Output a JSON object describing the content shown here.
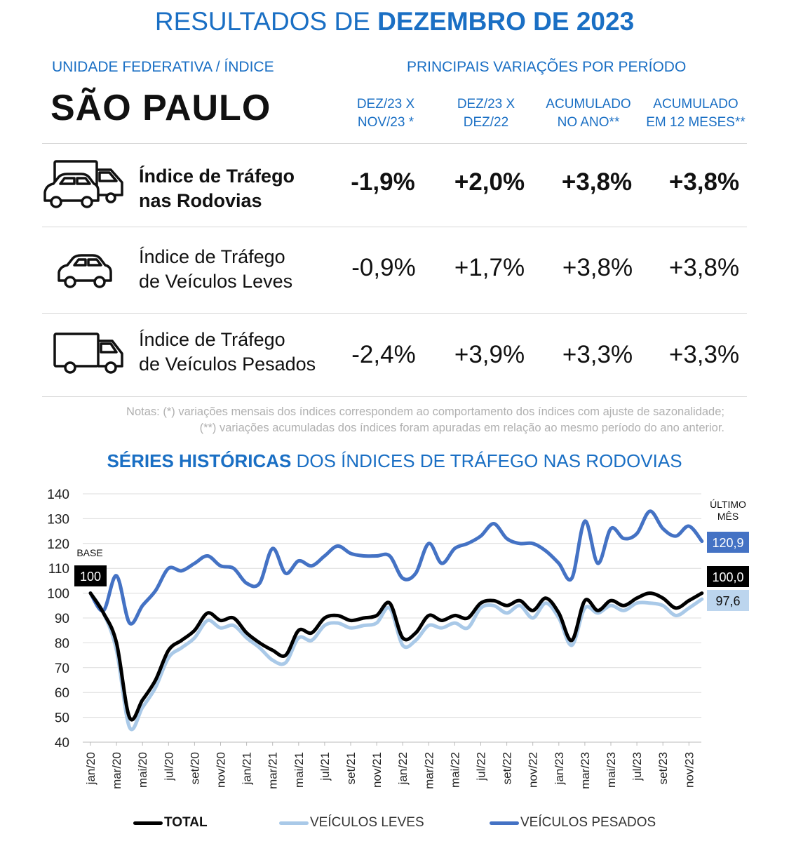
{
  "header": {
    "title_normal": "RESULTADOS DE ",
    "title_bold": "DEZEMBRO DE 2023",
    "left_label": "UNIDADE FEDERATIVA / ÍNDICE",
    "right_label": "PRINCIPAIS VARIAÇÕES POR PERÍODO",
    "state": "SÃO PAULO",
    "columns": [
      {
        "line1": "DEZ/23 X",
        "line2": "NOV/23 *"
      },
      {
        "line1": "DEZ/23 X",
        "line2": "DEZ/22"
      },
      {
        "line1": "ACUMULADO",
        "line2": "NO ANO**"
      },
      {
        "line1": "ACUMULADO",
        "line2": "EM 12 MESES**"
      }
    ]
  },
  "rows": [
    {
      "line1": "Índice de Tráfego",
      "line2": "nas Rodovias",
      "icon": "truck-and-car-icon",
      "values": [
        "-1,9%",
        "+2,0%",
        "+3,8%",
        "+3,8%"
      ]
    },
    {
      "line1": "Índice de Tráfego",
      "line2": "de Veículos Leves",
      "icon": "car-icon",
      "values": [
        "-0,9%",
        "+1,7%",
        "+3,8%",
        "+3,8%"
      ]
    },
    {
      "line1": "Índice de Tráfego",
      "line2": "de Veículos Pesados",
      "icon": "truck-icon",
      "values": [
        "-2,4%",
        "+3,9%",
        "+3,3%",
        "+3,3%"
      ]
    }
  ],
  "notes": {
    "line1": "Notas: (*) variações mensais dos índices correspondem ao comportamento dos índices com ajuste de sazonalidade;",
    "line2": "(**) variações acumuladas dos índices foram apuradas em relação ao mesmo período do ano anterior."
  },
  "chart_title": {
    "bold": "SÉRIES HISTÓRICAS",
    "normal": " DOS ÍNDICES DE TRÁFEGO NAS RODOVIAS"
  },
  "colors": {
    "accent": "#1a6fc4",
    "total": "#000000",
    "leves": "#a9c9e8",
    "pesados": "#4472c4"
  },
  "chart_data": {
    "type": "line",
    "ylim": [
      40,
      140
    ],
    "y_ticks": [
      "140",
      "130",
      "120",
      "110",
      "100",
      "90",
      "80",
      "70",
      "60",
      "50",
      "40"
    ],
    "x_tick_labels": [
      "jan/20",
      "mar/20",
      "mai/20",
      "jul/20",
      "set/20",
      "nov/20",
      "jan/21",
      "mar/21",
      "mai/21",
      "jul/21",
      "set/21",
      "nov/21",
      "jan/22",
      "mar/22",
      "mai/22",
      "jul/22",
      "set/22",
      "nov/22",
      "jan/23",
      "mar/23",
      "mai/23",
      "jul/23",
      "set/23",
      "nov/23"
    ],
    "x_months": 48,
    "base_label": "BASE",
    "base_value": "100",
    "last_month_label_1": "ÚLTIMO",
    "last_month_label_2": "MÊS",
    "last_labels": {
      "total": "100,0",
      "leves": "97,6",
      "pesados": "120,9"
    },
    "grid": true,
    "series": [
      {
        "name": "TOTAL",
        "key": "total",
        "values": [
          100,
          92,
          80,
          50,
          57,
          65,
          77,
          81,
          85,
          92,
          89,
          90,
          84,
          80,
          77,
          75,
          85,
          84,
          90,
          91,
          89,
          90,
          91,
          96,
          82,
          84,
          91,
          89,
          91,
          90,
          96,
          97,
          95,
          97,
          93,
          98,
          92,
          81,
          97,
          93,
          97,
          95,
          98,
          100,
          98,
          94,
          97,
          100
        ]
      },
      {
        "name": "VEÍCULOS LEVES",
        "key": "leves",
        "values": [
          100,
          92,
          77,
          46,
          54,
          62,
          74,
          78,
          82,
          89,
          86,
          87,
          82,
          78,
          73,
          72,
          82,
          81,
          87,
          88,
          86,
          87,
          88,
          94,
          79,
          81,
          87,
          86,
          88,
          86,
          94,
          95,
          92,
          95,
          90,
          96,
          90,
          79,
          94,
          92,
          95,
          93,
          96,
          96,
          95,
          91,
          94,
          97.6
        ]
      },
      {
        "name": "VEÍCULOS PESADOS",
        "key": "pesados",
        "values": [
          100,
          93,
          107,
          88,
          95,
          101,
          110,
          109,
          112,
          115,
          111,
          110,
          104,
          104,
          118,
          108,
          113,
          111,
          115,
          119,
          116,
          115,
          115,
          115,
          106,
          108,
          120,
          112,
          118,
          120,
          123,
          128,
          122,
          120,
          120,
          117,
          112,
          106,
          129,
          112,
          126,
          122,
          124,
          133,
          126,
          123,
          127,
          120.9
        ]
      }
    ]
  }
}
